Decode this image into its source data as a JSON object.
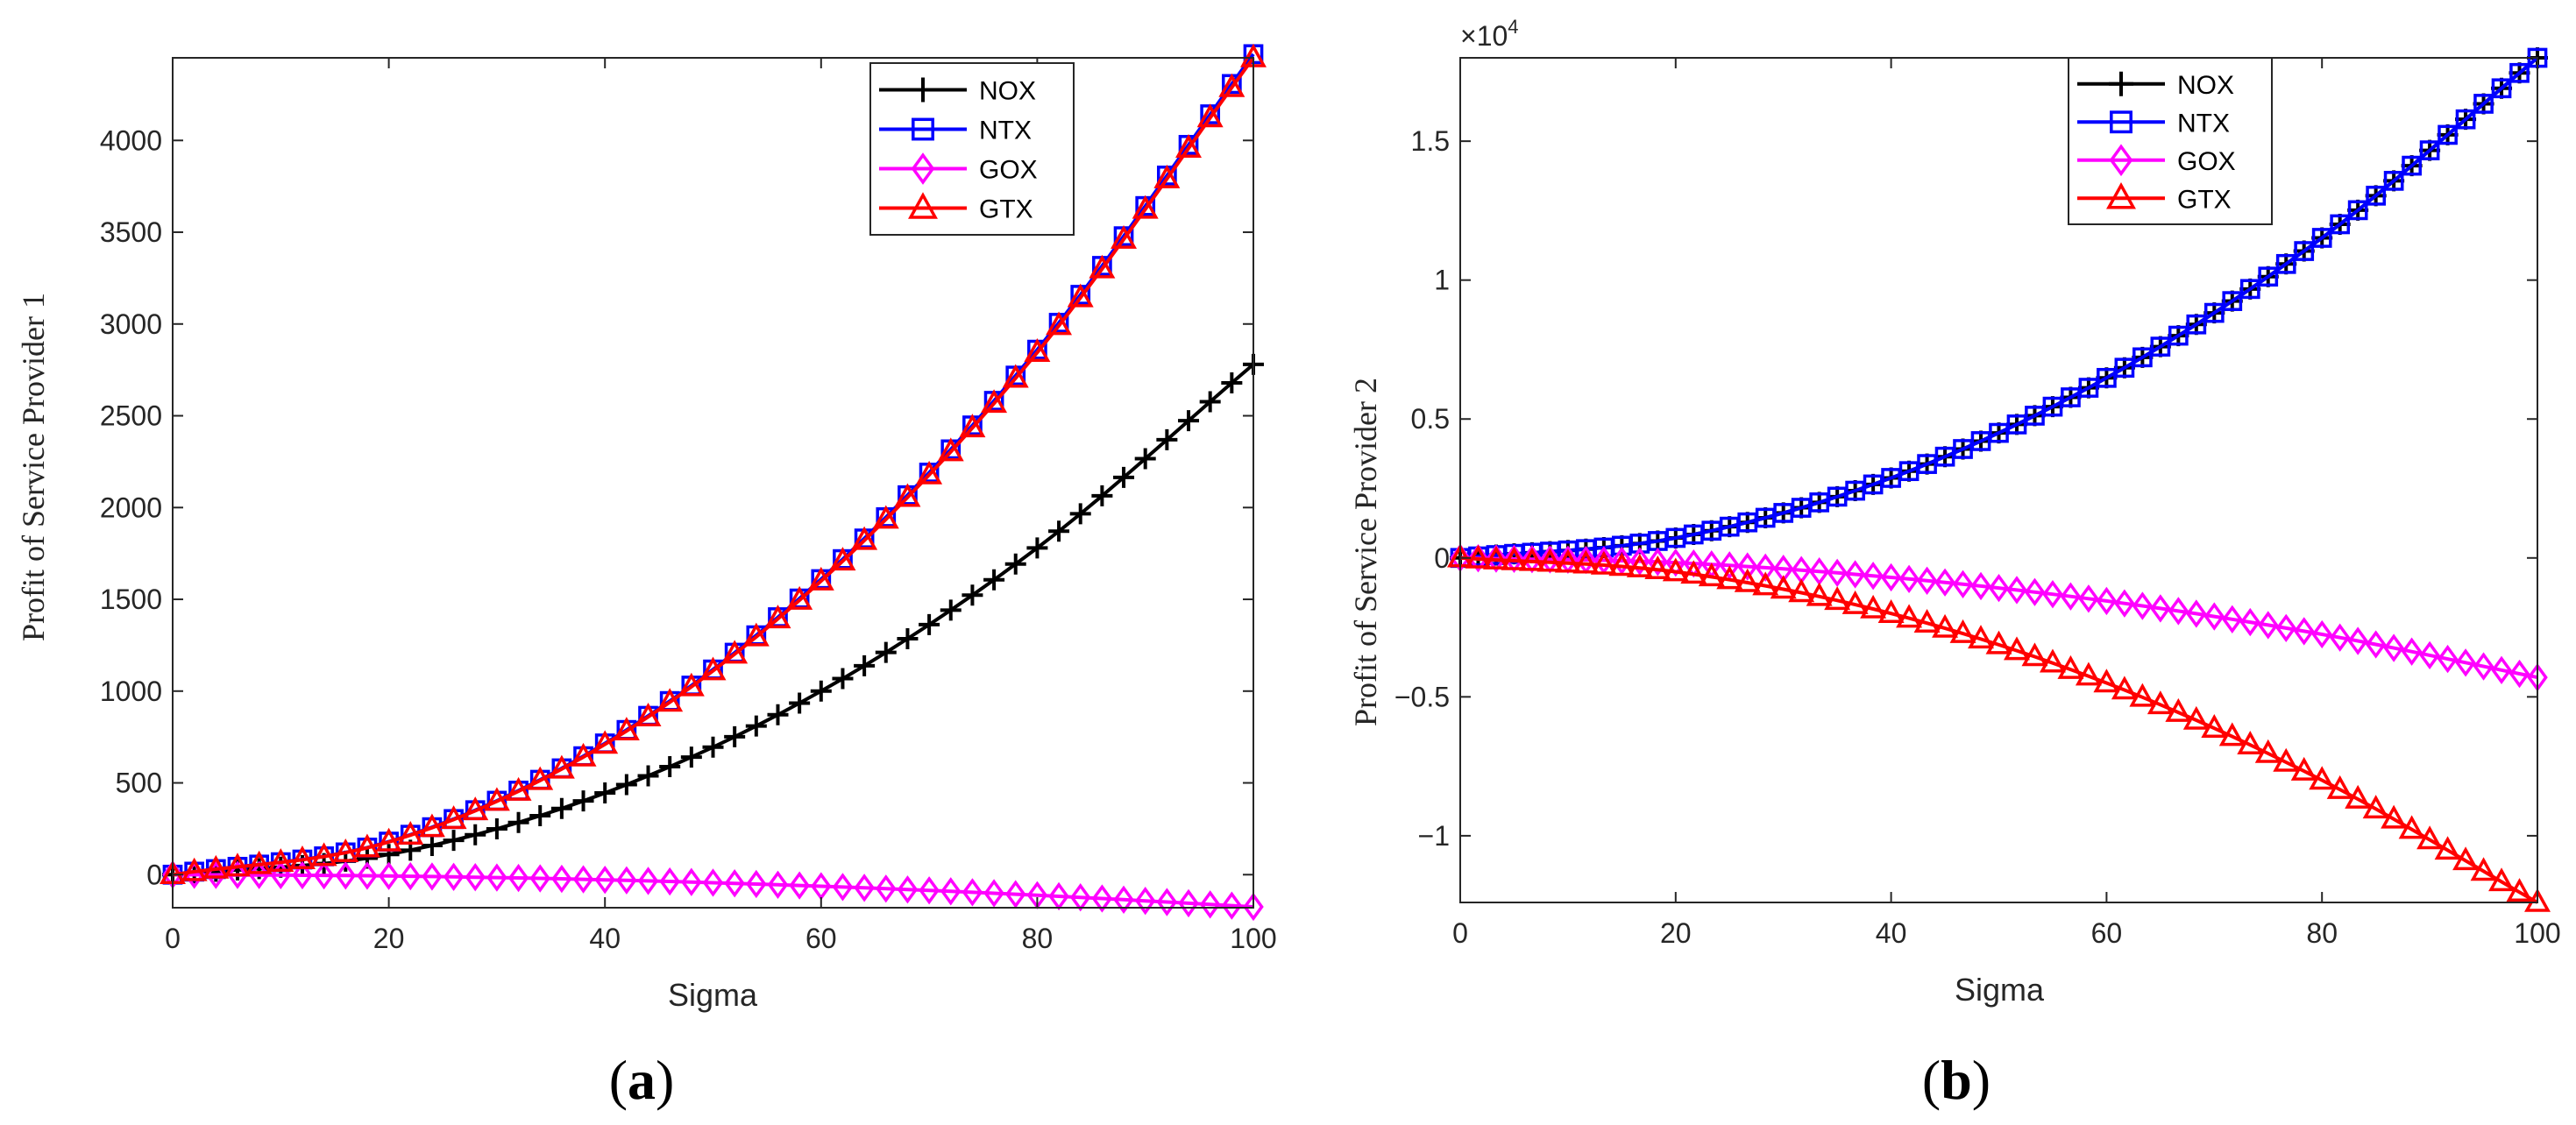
{
  "chart_data": [
    {
      "type": "line",
      "panel_label_open": "(",
      "panel_label_letter": "a",
      "panel_label_close": ")",
      "xlabel": "Sigma",
      "ylabel": "Profit of Service Provider 1",
      "xlim": [
        0,
        100
      ],
      "ylim": [
        -180,
        4450
      ],
      "xticks": [
        0,
        20,
        40,
        60,
        80,
        100
      ],
      "xtick_labels": [
        "0",
        "20",
        "40",
        "60",
        "80",
        "100"
      ],
      "yticks": [
        0,
        500,
        1000,
        1500,
        2000,
        2500,
        3000,
        3500,
        4000
      ],
      "ytick_labels": [
        "0",
        "500",
        "1000",
        "1500",
        "2000",
        "2500",
        "3000",
        "3500",
        "4000"
      ],
      "exponent_label": "",
      "legend_position": "top-right",
      "x": [
        0,
        20,
        40,
        60,
        80,
        100
      ],
      "series": [
        {
          "name": "NOX",
          "color": "#000000",
          "marker": "plus",
          "values": [
            0,
            110,
            445,
            1000,
            1780,
            2780
          ]
        },
        {
          "name": "NTX",
          "color": "#0000ff",
          "marker": "square",
          "values": [
            0,
            180,
            715,
            1610,
            2860,
            4470
          ]
        },
        {
          "name": "GOX",
          "color": "#ff00ff",
          "marker": "diamond",
          "values": [
            0,
            -7,
            -28,
            -63,
            -112,
            -175
          ]
        },
        {
          "name": "GTX",
          "color": "#ff0000",
          "marker": "triangle",
          "values": [
            0,
            178,
            710,
            1600,
            2845,
            4450
          ]
        }
      ]
    },
    {
      "type": "line",
      "panel_label_open": "(",
      "panel_label_letter": "b",
      "panel_label_close": ")",
      "xlabel": "Sigma",
      "ylabel": "Profit of Service Provider 2",
      "xlim": [
        0,
        100
      ],
      "ylim": [
        -1.24,
        1.8
      ],
      "xticks": [
        0,
        20,
        40,
        60,
        80,
        100
      ],
      "xtick_labels": [
        "0",
        "20",
        "40",
        "60",
        "80",
        "100"
      ],
      "yticks": [
        -1,
        -0.5,
        0,
        0.5,
        1,
        1.5
      ],
      "ytick_labels": [
        "−1",
        "−0.5",
        "0",
        "0.5",
        "1",
        "1.5"
      ],
      "exponent_base": "×10",
      "exponent_power": "4",
      "legend_position": "top-right",
      "x": [
        0,
        20,
        40,
        60,
        80,
        100
      ],
      "series": [
        {
          "name": "NOX",
          "color": "#000000",
          "marker": "plus",
          "values": [
            0,
            0.072,
            0.288,
            0.648,
            1.152,
            1.8
          ]
        },
        {
          "name": "NTX",
          "color": "#0000ff",
          "marker": "square",
          "values": [
            0,
            0.072,
            0.288,
            0.648,
            1.152,
            1.8
          ]
        },
        {
          "name": "GOX",
          "color": "#ff00ff",
          "marker": "diamond",
          "values": [
            0,
            -0.017,
            -0.07,
            -0.155,
            -0.275,
            -0.43
          ]
        },
        {
          "name": "GTX",
          "color": "#ff0000",
          "marker": "triangle",
          "values": [
            0,
            -0.05,
            -0.2,
            -0.45,
            -0.8,
            -1.24
          ]
        }
      ]
    }
  ]
}
